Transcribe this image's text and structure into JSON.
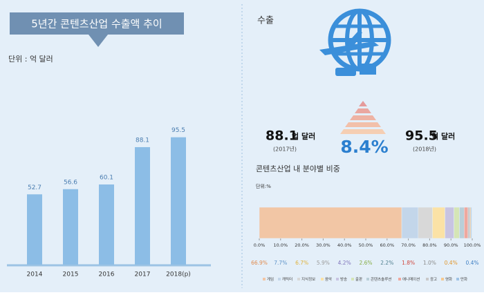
{
  "chart_data": [
    {
      "type": "bar",
      "title": "5년간 콘텐츠산업 수출액 추이",
      "subtitle": "단위 : 억 달러",
      "categories": [
        "2014",
        "2015",
        "2016",
        "2017",
        "2018(p)"
      ],
      "values": [
        52.7,
        56.6,
        60.1,
        88.1,
        95.5
      ],
      "color": "#8cbde6",
      "ylim": [
        0,
        100
      ]
    },
    {
      "type": "stacked-bar",
      "title": "콘텐츠산업 내 분야별 비중",
      "subtitle": "단위:%",
      "xlim": [
        0,
        100
      ],
      "xticks": [
        {
          "value": 0,
          "label": "0.0%"
        },
        {
          "value": 10,
          "label": "10.0%"
        },
        {
          "value": 20,
          "label": "20.0%"
        },
        {
          "value": 30,
          "label": "30.0%"
        },
        {
          "value": 40,
          "label": "40.0%"
        },
        {
          "value": 50,
          "label": "50.0%"
        },
        {
          "value": 60,
          "label": "60.0%"
        },
        {
          "value": 70,
          "label": "70.0%"
        },
        {
          "value": 80,
          "label": "80.0%"
        },
        {
          "value": 90,
          "label": "90.0%"
        },
        {
          "value": 100,
          "label": "100.0%"
        }
      ],
      "series": [
        {
          "name": "게임",
          "color": "#f2c6a5",
          "label_color": "#e08a4c",
          "values": [
            66.9
          ],
          "value_labels": [
            "66.9%"
          ]
        },
        {
          "name": "캐릭터",
          "color": "#c3d6ea",
          "label_color": "#5e93c8",
          "values": [
            7.7
          ],
          "value_labels": [
            "7.7%"
          ]
        },
        {
          "name": "지식정보",
          "color": "#d8d8d8",
          "label_color": "#e0b23a",
          "values": [
            6.7
          ],
          "value_labels": [
            "6.7%"
          ]
        },
        {
          "name": "음악",
          "color": "#fbe2a6",
          "label_color": "#9a9a9a",
          "values": [
            5.9
          ],
          "value_labels": [
            "5.9%"
          ]
        },
        {
          "name": "방송",
          "color": "#c8c4e2",
          "label_color": "#7f74bb",
          "values": [
            4.2
          ],
          "value_labels": [
            "4.2%"
          ]
        },
        {
          "name": "출판",
          "color": "#d5e5b6",
          "label_color": "#86ad45",
          "values": [
            2.6
          ],
          "value_labels": [
            "2.6%"
          ]
        },
        {
          "name": "콘텐츠솔루션",
          "color": "#b9cfd9",
          "label_color": "#4f7f8f",
          "values": [
            2.2
          ],
          "value_labels": [
            "2.2%"
          ]
        },
        {
          "name": "애니메이션",
          "color": "#f0a89e",
          "label_color": "#d0463c",
          "values": [
            1.8
          ],
          "value_labels": [
            "1.8%"
          ]
        },
        {
          "name": "광고",
          "color": "#c9c9c9",
          "label_color": "#8a8a8a",
          "values": [
            1.0
          ],
          "value_labels": [
            "1.0%"
          ]
        },
        {
          "name": "영화",
          "color": "#f5c98f",
          "label_color": "#e0962c",
          "values": [
            0.4
          ],
          "value_labels": [
            "0.4%"
          ]
        },
        {
          "name": "만화",
          "color": "#9fc3e6",
          "label_color": "#3f7fc4",
          "values": [
            0.4
          ],
          "value_labels": [
            "0.4%"
          ]
        }
      ]
    }
  ],
  "export": {
    "title": "수출",
    "from": {
      "amount": "88.1",
      "unit": "억 달러",
      "year": "(2017년)"
    },
    "growth": "8.4%",
    "to": {
      "amount": "95.5",
      "unit": "억 달러",
      "year": "(2018년)"
    }
  }
}
